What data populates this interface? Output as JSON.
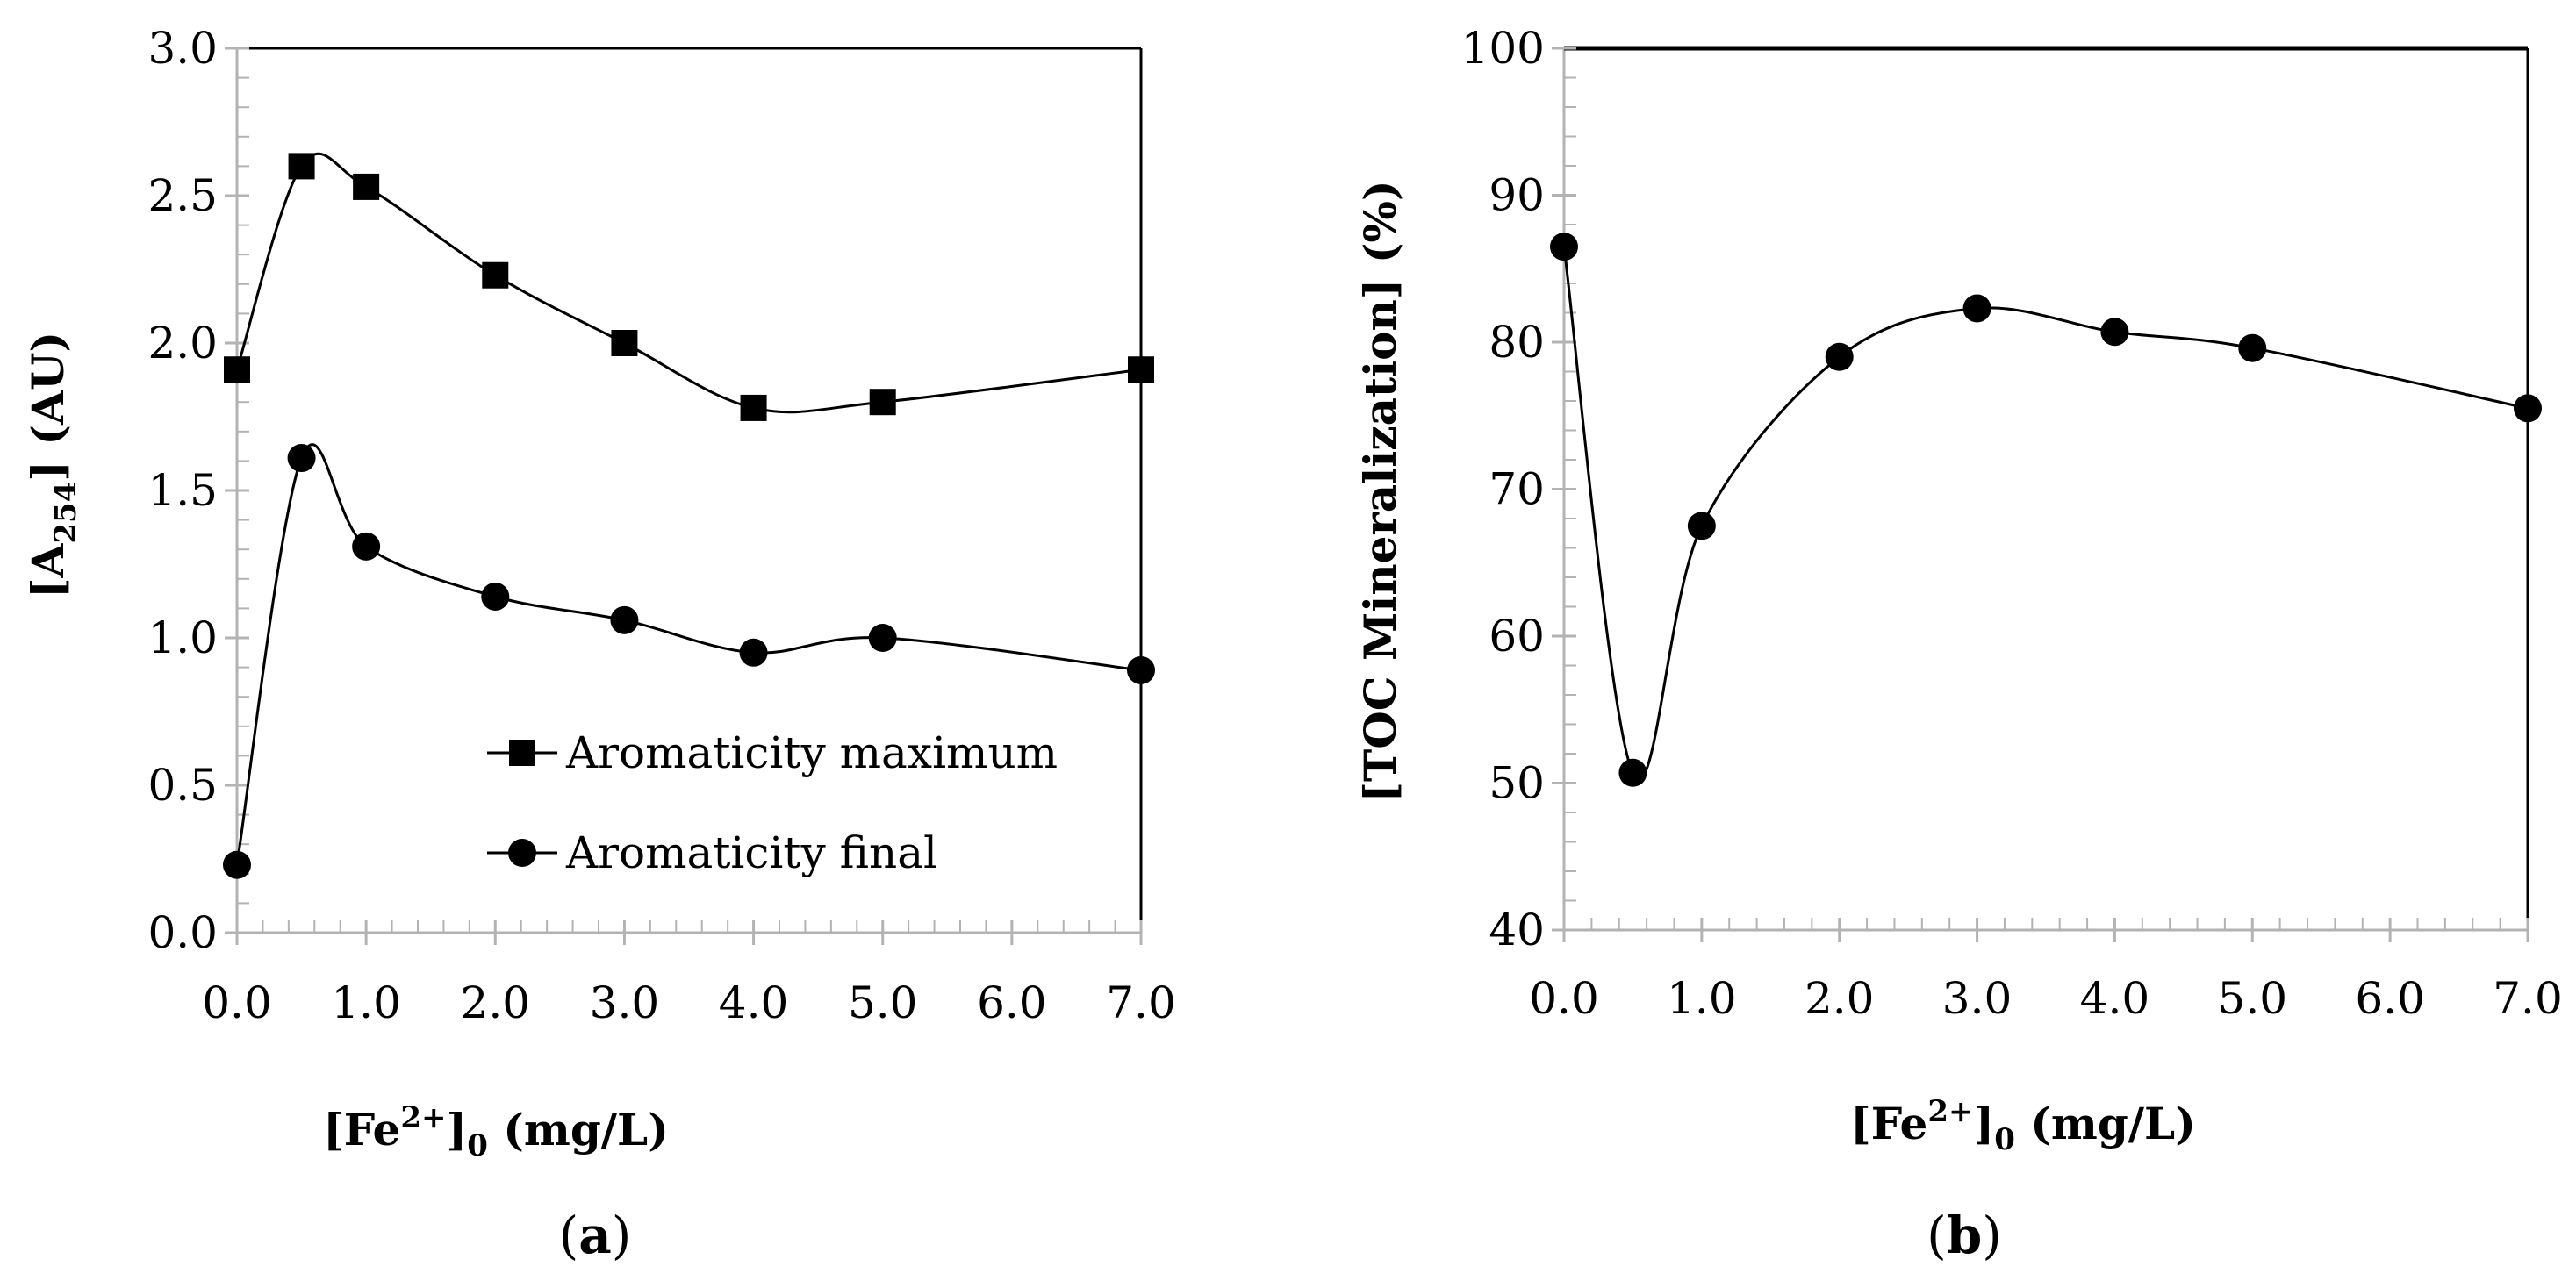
{
  "chart_data": [
    {
      "type": "line",
      "panel_label_open": "(",
      "panel_label_letter": "a",
      "panel_label_close": ")",
      "xlabel_lbracket": "[Fe",
      "xlabel_sup": "2+",
      "xlabel_rbracket": "]",
      "xlabel_sub": "0",
      "xlabel_units": " (mg/L)",
      "ylabel_lbracket": "[A",
      "ylabel_sub": "254",
      "ylabel_units": "] (AU)",
      "xlim": [
        0,
        7
      ],
      "ylim": [
        0,
        3
      ],
      "xticks": [
        "0.0",
        "1.0",
        "2.0",
        "3.0",
        "4.0",
        "5.0",
        "6.0",
        "7.0"
      ],
      "yticks": [
        "0.0",
        "0.5",
        "1.0",
        "1.5",
        "2.0",
        "2.5",
        "3.0"
      ],
      "legend_position": "lower-center",
      "series": [
        {
          "name": "Aromaticity maximum",
          "marker": "square",
          "x": [
            0,
            0.5,
            1,
            2,
            3,
            4,
            5,
            7
          ],
          "y": [
            1.91,
            2.6,
            2.53,
            2.23,
            2.0,
            1.78,
            1.8,
            1.91
          ]
        },
        {
          "name": "Aromaticity final",
          "marker": "circle",
          "x": [
            0,
            0.5,
            1,
            2,
            3,
            4,
            5,
            7
          ],
          "y": [
            0.23,
            1.61,
            1.31,
            1.14,
            1.06,
            0.95,
            1.0,
            0.89
          ]
        }
      ]
    },
    {
      "type": "line",
      "panel_label_open": "(",
      "panel_label_letter": "b",
      "panel_label_close": ")",
      "xlabel_lbracket": "[Fe",
      "xlabel_sup": "2+",
      "xlabel_rbracket": "]",
      "xlabel_sub": "0",
      "xlabel_units": " (mg/L)",
      "ylabel": "[TOC Mineralization] (%)",
      "xlim": [
        0,
        7
      ],
      "ylim": [
        40,
        100
      ],
      "xticks": [
        "0.0",
        "1.0",
        "2.0",
        "3.0",
        "4.0",
        "5.0",
        "6.0",
        "7.0"
      ],
      "yticks": [
        "40",
        "50",
        "60",
        "70",
        "80",
        "90",
        "100"
      ],
      "series": [
        {
          "name": "TOC Mineralization",
          "marker": "circle",
          "x": [
            0,
            0.5,
            1,
            2,
            3,
            4,
            5,
            7
          ],
          "y": [
            86.5,
            50.7,
            67.5,
            79.0,
            82.3,
            80.7,
            79.6,
            75.5
          ]
        }
      ]
    }
  ]
}
